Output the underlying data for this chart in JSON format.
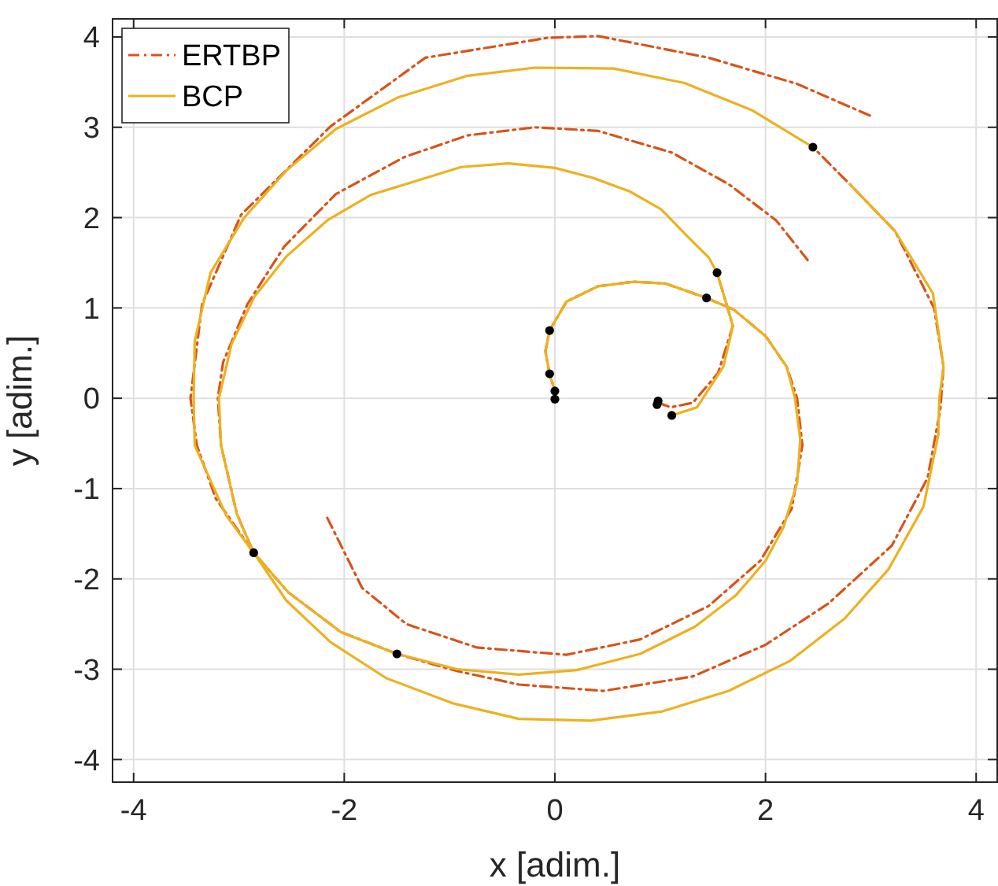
{
  "chart_data": {
    "type": "line",
    "xlabel": "x [adim.]",
    "ylabel": "y [adim.]",
    "xlim": [
      -4.2,
      4.2
    ],
    "ylim": [
      -4.25,
      4.2
    ],
    "xticks": [
      -4,
      -2,
      0,
      2,
      4
    ],
    "yticks": [
      -4,
      -3,
      -2,
      -1,
      0,
      1,
      2,
      3,
      4
    ],
    "grid": true,
    "legend": "top left",
    "series": [
      {
        "name": "ERTBP",
        "color": "#d95319",
        "line_style": "dashed",
        "marker": "none",
        "x": [
          0,
          0,
          -0.05,
          -0.09,
          -0.05,
          0.11,
          0.41,
          0.75,
          1.05,
          1.44,
          1.7,
          2.0,
          2.2,
          2.3,
          2.35,
          2.25,
          1.95,
          1.46,
          0.81,
          0.11,
          -0.74,
          -1.41,
          -1.83,
          -2.18
        ],
        "values": [
          -0.01,
          0.08,
          0.27,
          0.52,
          0.75,
          1.07,
          1.24,
          1.29,
          1.27,
          1.11,
          0.98,
          0.69,
          0.35,
          0,
          -0.52,
          -1.22,
          -1.8,
          -2.3,
          -2.67,
          -2.84,
          -2.76,
          -2.5,
          -2.1,
          -1.28
        ]
      },
      {
        "color": "#d95319",
        "line_style": "dashed",
        "marker": "none",
        "x": [
          0.98,
          1.1,
          1.31,
          1.55,
          1.69,
          1.63,
          1.54
        ],
        "values": [
          -0.05,
          -0.1,
          -0.05,
          0.28,
          0.8,
          1.04,
          1.39
        ]
      },
      {
        "color": "#d95319",
        "line_style": "dashed",
        "marker": "none",
        "x": [
          2.4,
          2.1,
          1.65,
          1.11,
          0.41,
          -0.19,
          -0.83,
          -1.43,
          -2.08,
          -2.57,
          -2.92,
          -3.15,
          -3.2,
          -3.17,
          -3.02,
          -2.86,
          -2.53,
          -2.03,
          -1.5,
          -0.93,
          -0.34,
          0.46,
          1.31,
          2.0,
          2.6,
          3.2,
          3.54,
          3.66,
          3.69,
          3.6,
          3.23,
          2.8,
          2.45
        ],
        "values": [
          1.53,
          1.97,
          2.37,
          2.72,
          2.96,
          3.0,
          2.91,
          2.67,
          2.26,
          1.68,
          1.04,
          0.4,
          0,
          -0.52,
          -1.28,
          -1.71,
          -2.15,
          -2.59,
          -2.83,
          -3.02,
          -3.17,
          -3.24,
          -3.08,
          -2.73,
          -2.27,
          -1.63,
          -0.88,
          -0.12,
          0.35,
          1.0,
          1.85,
          2.37,
          2.78
        ]
      },
      {
        "color": "#d95319",
        "line_style": "dashed",
        "marker": "none",
        "x": [
          2.99,
          2.3,
          1.46,
          0.41,
          -0.07,
          -1.23,
          -2.13,
          -2.98,
          -3.35,
          -3.46,
          -3.4,
          -3.22,
          -2.86
        ],
        "values": [
          3.13,
          3.48,
          3.77,
          4.01,
          3.99,
          3.77,
          3.01,
          2.03,
          1.04,
          0,
          -0.52,
          -1.11,
          -1.71
        ]
      },
      {
        "name": "BCP",
        "color": "#edb120",
        "line_style": "solid",
        "marker": "none",
        "x": [
          0,
          0,
          -0.05,
          -0.09,
          -0.05,
          0.11,
          0.41,
          0.75,
          1.05,
          1.44,
          1.7,
          2.0,
          2.2,
          2.28,
          2.33,
          2.3,
          2.17,
          2.0,
          1.72,
          1.33,
          0.81,
          0.21,
          -0.34,
          -0.93,
          -1.5,
          -2.03,
          -2.53,
          -2.86,
          -3.02,
          -3.17,
          -3.19,
          -3.07,
          -2.85,
          -2.55,
          -2.16,
          -1.75,
          -0.89,
          -0.44,
          0,
          0.36,
          0.71,
          1.01,
          1.26,
          1.46,
          1.54,
          1.63,
          1.69,
          1.6,
          1.35,
          1.11
        ],
        "values": [
          -0.01,
          0.08,
          0.27,
          0.52,
          0.75,
          1.07,
          1.24,
          1.29,
          1.27,
          1.11,
          0.98,
          0.69,
          0.35,
          0,
          -0.46,
          -0.94,
          -1.43,
          -1.8,
          -2.18,
          -2.53,
          -2.83,
          -3.01,
          -3.06,
          -3.0,
          -2.83,
          -2.59,
          -2.15,
          -1.71,
          -1.28,
          -0.52,
          0,
          0.6,
          1.13,
          1.57,
          1.97,
          2.25,
          2.56,
          2.6,
          2.55,
          2.44,
          2.29,
          2.09,
          1.79,
          1.56,
          1.39,
          1.04,
          0.8,
          0.35,
          -0.1,
          -0.19
        ]
      },
      {
        "color": "#edb120",
        "line_style": "solid",
        "marker": "none",
        "x": [
          2.45,
          1.87,
          1.23,
          0.56,
          -0.19,
          -0.83,
          -1.49,
          -2.08,
          -2.55,
          -2.95,
          -3.27,
          -3.42,
          -3.43,
          -3.42,
          -3.12,
          -2.86,
          -2.55,
          -2.13,
          -1.6,
          -0.96,
          -0.34,
          0.34,
          1.01,
          1.65,
          2.23,
          2.75,
          3.17,
          3.5,
          3.64,
          3.65,
          3.69,
          3.59,
          3.23,
          2.8
        ],
        "values": [
          2.78,
          3.19,
          3.49,
          3.65,
          3.66,
          3.57,
          3.33,
          2.98,
          2.52,
          2.0,
          1.39,
          0.63,
          0,
          -0.52,
          -1.3,
          -1.71,
          -2.24,
          -2.7,
          -3.1,
          -3.38,
          -3.55,
          -3.57,
          -3.47,
          -3.24,
          -2.91,
          -2.44,
          -1.89,
          -1.2,
          -0.41,
          0,
          0.35,
          1.16,
          1.85,
          2.37
        ]
      },
      {
        "type": "scatter",
        "color": "#000000",
        "marker": "circle",
        "x": [
          -0.05,
          -0.05,
          0,
          0,
          0.98,
          0.97,
          1.11,
          1.44,
          1.54,
          2.45,
          -2.86,
          -1.5
        ],
        "values": [
          0.75,
          0.27,
          0.08,
          -0.01,
          -0.03,
          -0.07,
          -0.19,
          1.11,
          1.39,
          2.78,
          -1.71,
          -2.83
        ]
      }
    ]
  }
}
